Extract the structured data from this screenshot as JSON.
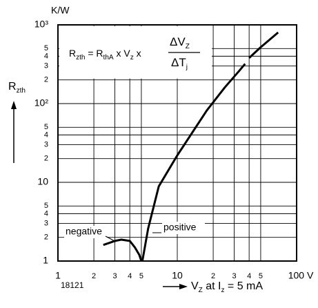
{
  "chart_data": {
    "type": "line",
    "y_unit": "K/W",
    "y_label": [
      {
        "t": "R"
      },
      {
        "t": "zth",
        "sub": true
      }
    ],
    "x_label": [
      {
        "t": "V"
      },
      {
        "t": "Z",
        "sub": true
      },
      {
        "t": " at I"
      },
      {
        "t": "z",
        "sub": true
      },
      {
        "t": " = 5 mA"
      }
    ],
    "figure_number": "18121",
    "formula": {
      "left": [
        {
          "t": "R"
        },
        {
          "t": "zth",
          "sub": true
        },
        {
          "t": " = R"
        },
        {
          "t": "thA",
          "sub": true
        },
        {
          "t": " x V"
        },
        {
          "t": "z",
          "sub": true
        },
        {
          "t": " x"
        }
      ],
      "numerator": [
        {
          "t": "ΔV"
        },
        {
          "t": "Z",
          "sub": true
        }
      ],
      "denominator": [
        {
          "t": "ΔT"
        },
        {
          "t": "j",
          "sub": true
        }
      ]
    },
    "xlog": true,
    "ylog": true,
    "grid": true,
    "xlim": [
      1,
      100
    ],
    "ylim": [
      1,
      1000
    ],
    "xticks": [
      1,
      2,
      3,
      4,
      5,
      10,
      {
        "value": 20,
        "label": "2"
      },
      {
        "value": 30,
        "label": "3"
      },
      {
        "value": 40,
        "label": "4"
      },
      {
        "value": 50,
        "label": "5"
      },
      {
        "value": 100,
        "label": "100 V"
      }
    ],
    "yticks": [
      1,
      2,
      3,
      4,
      5,
      10,
      {
        "value": 20,
        "label": "2"
      },
      {
        "value": 30,
        "label": "3"
      },
      {
        "value": 40,
        "label": "4"
      },
      {
        "value": 50,
        "label": "5"
      },
      {
        "value": 100,
        "label": "10²"
      },
      {
        "value": 200,
        "label": "2"
      },
      {
        "value": 300,
        "label": "3"
      },
      {
        "value": 400,
        "label": "4"
      },
      {
        "value": 500,
        "label": "5"
      },
      {
        "value": 1000,
        "label": "10³"
      }
    ],
    "series": [
      {
        "name": "negative",
        "color": "#000000",
        "x": [
          2.4,
          3.0,
          3.4,
          4.0,
          4.4,
          4.8,
          5.0
        ],
        "values": [
          1.6,
          1.8,
          1.87,
          1.8,
          1.5,
          1.2,
          1.0
        ]
      },
      {
        "name": "positive",
        "color": "#000000",
        "x": [
          5.1,
          5.7,
          7,
          10,
          17.7,
          25,
          33,
          37,
          null,
          40,
          50,
          70
        ],
        "values": [
          1,
          2.6,
          8.9,
          22,
          82,
          160,
          260,
          320,
          null,
          380,
          520,
          800
        ]
      }
    ]
  }
}
